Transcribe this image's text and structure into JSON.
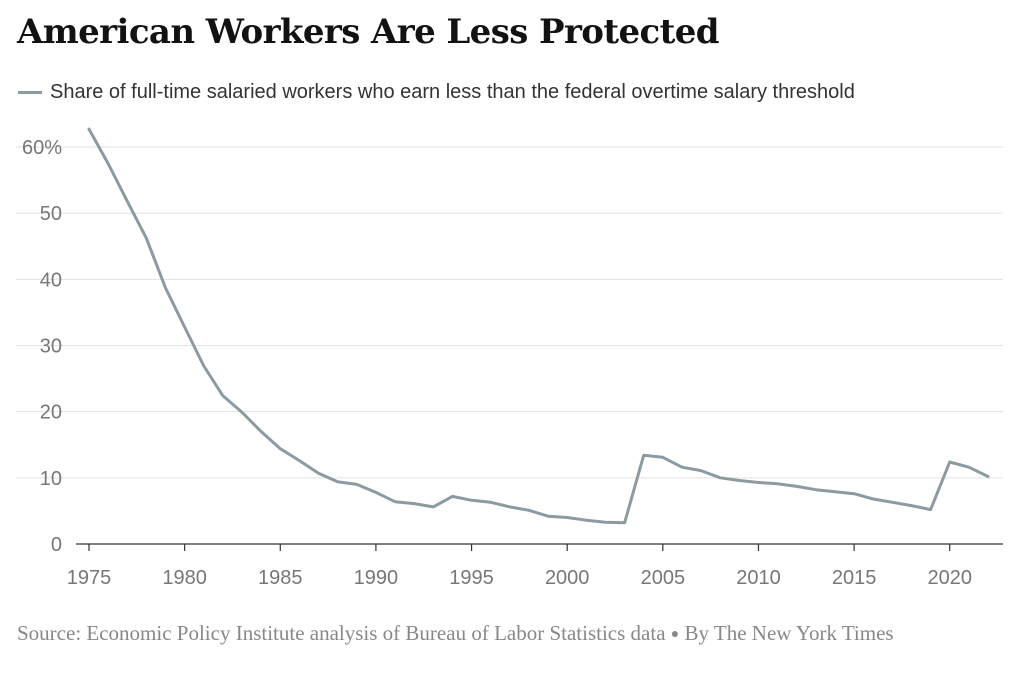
{
  "title": "American Workers Are Less Protected",
  "legend_label": "Share of full-time salaried workers who earn less than the federal overtime salary threshold",
  "source": "Source: Economic Policy Institute analysis of Bureau of Labor Statistics data",
  "byline": "By The New York Times",
  "chart_data": {
    "type": "line",
    "title": "American Workers Are Less Protected",
    "xlabel": "",
    "ylabel": "",
    "xlim": [
      1975,
      2022
    ],
    "ylim": [
      0,
      60
    ],
    "y_ticks": [
      0,
      10,
      20,
      30,
      40,
      50,
      60
    ],
    "y_tick_labels": [
      "0",
      "10",
      "20",
      "30",
      "40",
      "50",
      "60%"
    ],
    "x_ticks": [
      1975,
      1980,
      1985,
      1990,
      1995,
      2000,
      2005,
      2010,
      2015,
      2020
    ],
    "x_tick_labels": [
      "1975",
      "1980",
      "1985",
      "1990",
      "1995",
      "2000",
      "2005",
      "2010",
      "2015",
      "2020"
    ],
    "grid": true,
    "legend_position": "top",
    "line_color": "#8c9aa1",
    "series": [
      {
        "name": "Share of full-time salaried workers who earn less than the federal overtime salary threshold",
        "x": [
          1975,
          1976,
          1977,
          1978,
          1979,
          1980,
          1981,
          1982,
          1983,
          1984,
          1985,
          1986,
          1987,
          1988,
          1989,
          1990,
          1991,
          1992,
          1993,
          1994,
          1995,
          1996,
          1997,
          1998,
          1999,
          2000,
          2001,
          2002,
          2003,
          2004,
          2005,
          2006,
          2007,
          2008,
          2009,
          2010,
          2011,
          2012,
          2013,
          2014,
          2015,
          2016,
          2017,
          2018,
          2019,
          2020,
          2021,
          2022
        ],
        "y": [
          62.7,
          57.5,
          51.8,
          46.2,
          38.7,
          32.8,
          26.9,
          22.4,
          19.9,
          17.0,
          14.4,
          12.6,
          10.7,
          9.4,
          9.0,
          7.8,
          6.4,
          6.1,
          5.6,
          7.2,
          6.6,
          6.3,
          5.6,
          5.1,
          4.2,
          4.0,
          3.6,
          3.3,
          3.2,
          13.4,
          13.1,
          11.6,
          11.1,
          10.0,
          9.6,
          9.3,
          9.1,
          8.7,
          8.2,
          7.9,
          7.6,
          6.8,
          6.3,
          5.8,
          5.2,
          12.4,
          11.6,
          10.2
        ]
      }
    ]
  }
}
